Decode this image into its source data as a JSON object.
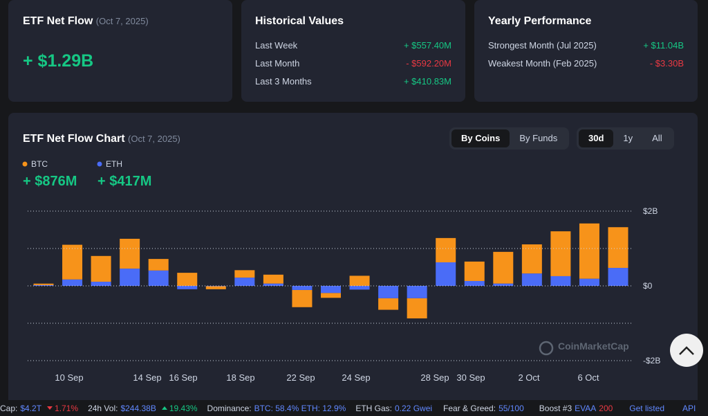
{
  "summary": {
    "title": "ETF Net Flow",
    "date": "(Oct 7, 2025)",
    "value": "+ $1.29B"
  },
  "historical": {
    "title": "Historical Values",
    "rows": [
      {
        "label": "Last Week",
        "value": "+ $557.40M",
        "trend": "up"
      },
      {
        "label": "Last Month",
        "value": "- $592.20M",
        "trend": "down"
      },
      {
        "label": "Last 3 Months",
        "value": "+ $410.83M",
        "trend": "up"
      }
    ]
  },
  "yearly": {
    "title": "Yearly Performance",
    "rows": [
      {
        "label": "Strongest Month (Jul 2025)",
        "value": "+ $11.04B",
        "trend": "up"
      },
      {
        "label": "Weakest Month (Feb 2025)",
        "value": "- $3.30B",
        "trend": "down"
      }
    ]
  },
  "tabs": {
    "view": [
      "By Coins",
      "By Funds"
    ],
    "range": [
      "30d",
      "1y",
      "All"
    ]
  },
  "watermark": "CoinMarketCap",
  "chart_data": {
    "type": "bar",
    "stacked": true,
    "title": "ETF Net Flow Chart",
    "subtitle": "(Oct 7, 2025)",
    "categories": [
      null,
      null,
      null,
      null,
      null,
      null,
      null,
      null,
      null,
      null,
      null,
      null,
      null,
      null,
      null,
      null,
      null,
      null,
      null,
      null,
      null
    ],
    "x_labels": [
      "10 Sep",
      "14 Sep",
      "16 Sep",
      "18 Sep",
      "22 Sep",
      "24 Sep",
      "28 Sep",
      "30 Sep",
      "2 Oct",
      "6 Oct"
    ],
    "series": [
      {
        "name": "BTC",
        "color": "#f7931a",
        "total": "+ $876M",
        "values": [
          0.04,
          0.93,
          0.69,
          0.8,
          0.31,
          0.35,
          -0.08,
          0.2,
          0.24,
          -0.46,
          -0.13,
          0.27,
          -0.31,
          -0.54,
          0.65,
          0.52,
          0.85,
          0.78,
          1.2,
          1.48,
          1.09
        ]
      },
      {
        "name": "ETH",
        "color": "#4a6cf7",
        "total": "+ $417M",
        "values": [
          0.02,
          0.17,
          0.11,
          0.46,
          0.41,
          -0.09,
          -0.01,
          0.22,
          0.06,
          -0.11,
          -0.19,
          -0.1,
          -0.33,
          -0.33,
          0.63,
          0.13,
          0.06,
          0.33,
          0.26,
          0.19,
          0.48
        ]
      }
    ],
    "ylim": [
      -2,
      2
    ],
    "yticks": [
      {
        "value": 2,
        "label": "$2B"
      },
      {
        "value": 1,
        "label": null
      },
      {
        "value": 0,
        "label": "$0"
      },
      {
        "value": -1,
        "label": null
      },
      {
        "value": -2,
        "label": "-$2B"
      }
    ],
    "grid": true
  },
  "ticker": {
    "cap_label": "Cap:",
    "cap_value": "$4.2T",
    "cap_change": "1.71%",
    "vol_label": "24h Vol:",
    "vol_value": "$244.38B",
    "vol_change": "19.43%",
    "dom_label": "Dominance:",
    "dom_value": "BTC: 58.4% ETH: 12.9%",
    "gas_label": "ETH Gas:",
    "gas_value": "0.22 Gwei",
    "fg_label": "Fear & Greed:",
    "fg_value": "55/100",
    "boost_label": "Boost #3",
    "boost_coin": "EVAA",
    "boost_value": "200",
    "listed": "Get listed",
    "api": "API"
  }
}
